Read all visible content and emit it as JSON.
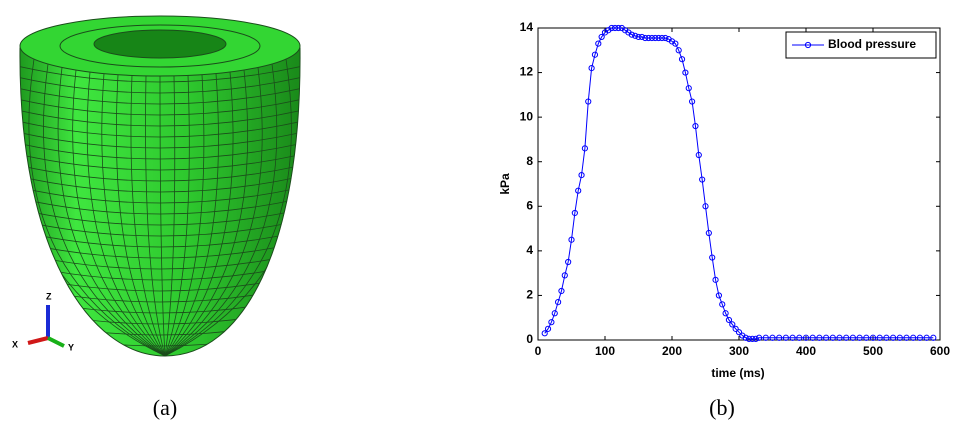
{
  "panels": {
    "a": "(a)",
    "b": "(b)"
  },
  "mesh_axes": {
    "x": "X",
    "y": "Y",
    "z": "Z"
  },
  "chart_data": {
    "type": "line",
    "xlabel": "time (ms)",
    "ylabel": "kPa",
    "xlim": [
      0,
      600
    ],
    "xticks": [
      0,
      100,
      200,
      300,
      400,
      500,
      600
    ],
    "ylim": [
      0,
      14
    ],
    "yticks": [
      0,
      2,
      4,
      6,
      8,
      10,
      12,
      14
    ],
    "grid": false,
    "legend": "upper right",
    "x": [
      10,
      15,
      20,
      25,
      30,
      35,
      40,
      45,
      50,
      55,
      60,
      65,
      70,
      75,
      80,
      85,
      90,
      95,
      100,
      105,
      110,
      115,
      120,
      125,
      130,
      135,
      140,
      145,
      150,
      155,
      160,
      165,
      170,
      175,
      180,
      185,
      190,
      195,
      200,
      205,
      210,
      215,
      220,
      225,
      230,
      235,
      240,
      245,
      250,
      255,
      260,
      265,
      270,
      275,
      280,
      285,
      290,
      295,
      300,
      305,
      310,
      315,
      320,
      325,
      330,
      340,
      350,
      360,
      370,
      380,
      390,
      400,
      410,
      420,
      430,
      440,
      450,
      460,
      470,
      480,
      490,
      500,
      510,
      520,
      530,
      540,
      550,
      560,
      570,
      580,
      590
    ],
    "series": [
      {
        "name": "Blood pressure",
        "color": "#0000ff",
        "values": [
          0.3,
          0.5,
          0.8,
          1.2,
          1.7,
          2.2,
          2.9,
          3.5,
          4.5,
          5.7,
          6.7,
          7.4,
          8.6,
          10.7,
          12.2,
          12.8,
          13.3,
          13.6,
          13.8,
          13.9,
          14.0,
          14.0,
          14.0,
          14.0,
          13.9,
          13.8,
          13.7,
          13.65,
          13.6,
          13.6,
          13.55,
          13.55,
          13.55,
          13.55,
          13.55,
          13.55,
          13.55,
          13.5,
          13.4,
          13.3,
          13.0,
          12.6,
          12.0,
          11.3,
          10.7,
          9.6,
          8.3,
          7.2,
          6.0,
          4.8,
          3.7,
          2.7,
          2.0,
          1.6,
          1.2,
          0.9,
          0.7,
          0.5,
          0.35,
          0.2,
          0.1,
          0.05,
          0.05,
          0.05,
          0.1,
          0.1,
          0.1,
          0.1,
          0.1,
          0.1,
          0.1,
          0.1,
          0.1,
          0.1,
          0.1,
          0.1,
          0.1,
          0.1,
          0.1,
          0.1,
          0.1,
          0.1,
          0.1,
          0.1,
          0.1,
          0.1,
          0.1,
          0.1,
          0.1,
          0.1,
          0.1
        ]
      }
    ]
  }
}
